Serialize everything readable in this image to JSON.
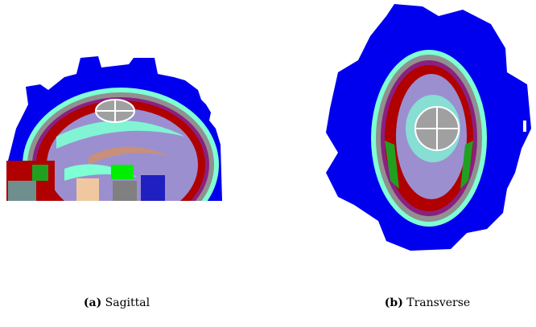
{
  "figures": [
    {
      "label": "(a)",
      "caption": "Sagittal"
    },
    {
      "label": "(b)",
      "caption": "Transverse"
    }
  ]
}
